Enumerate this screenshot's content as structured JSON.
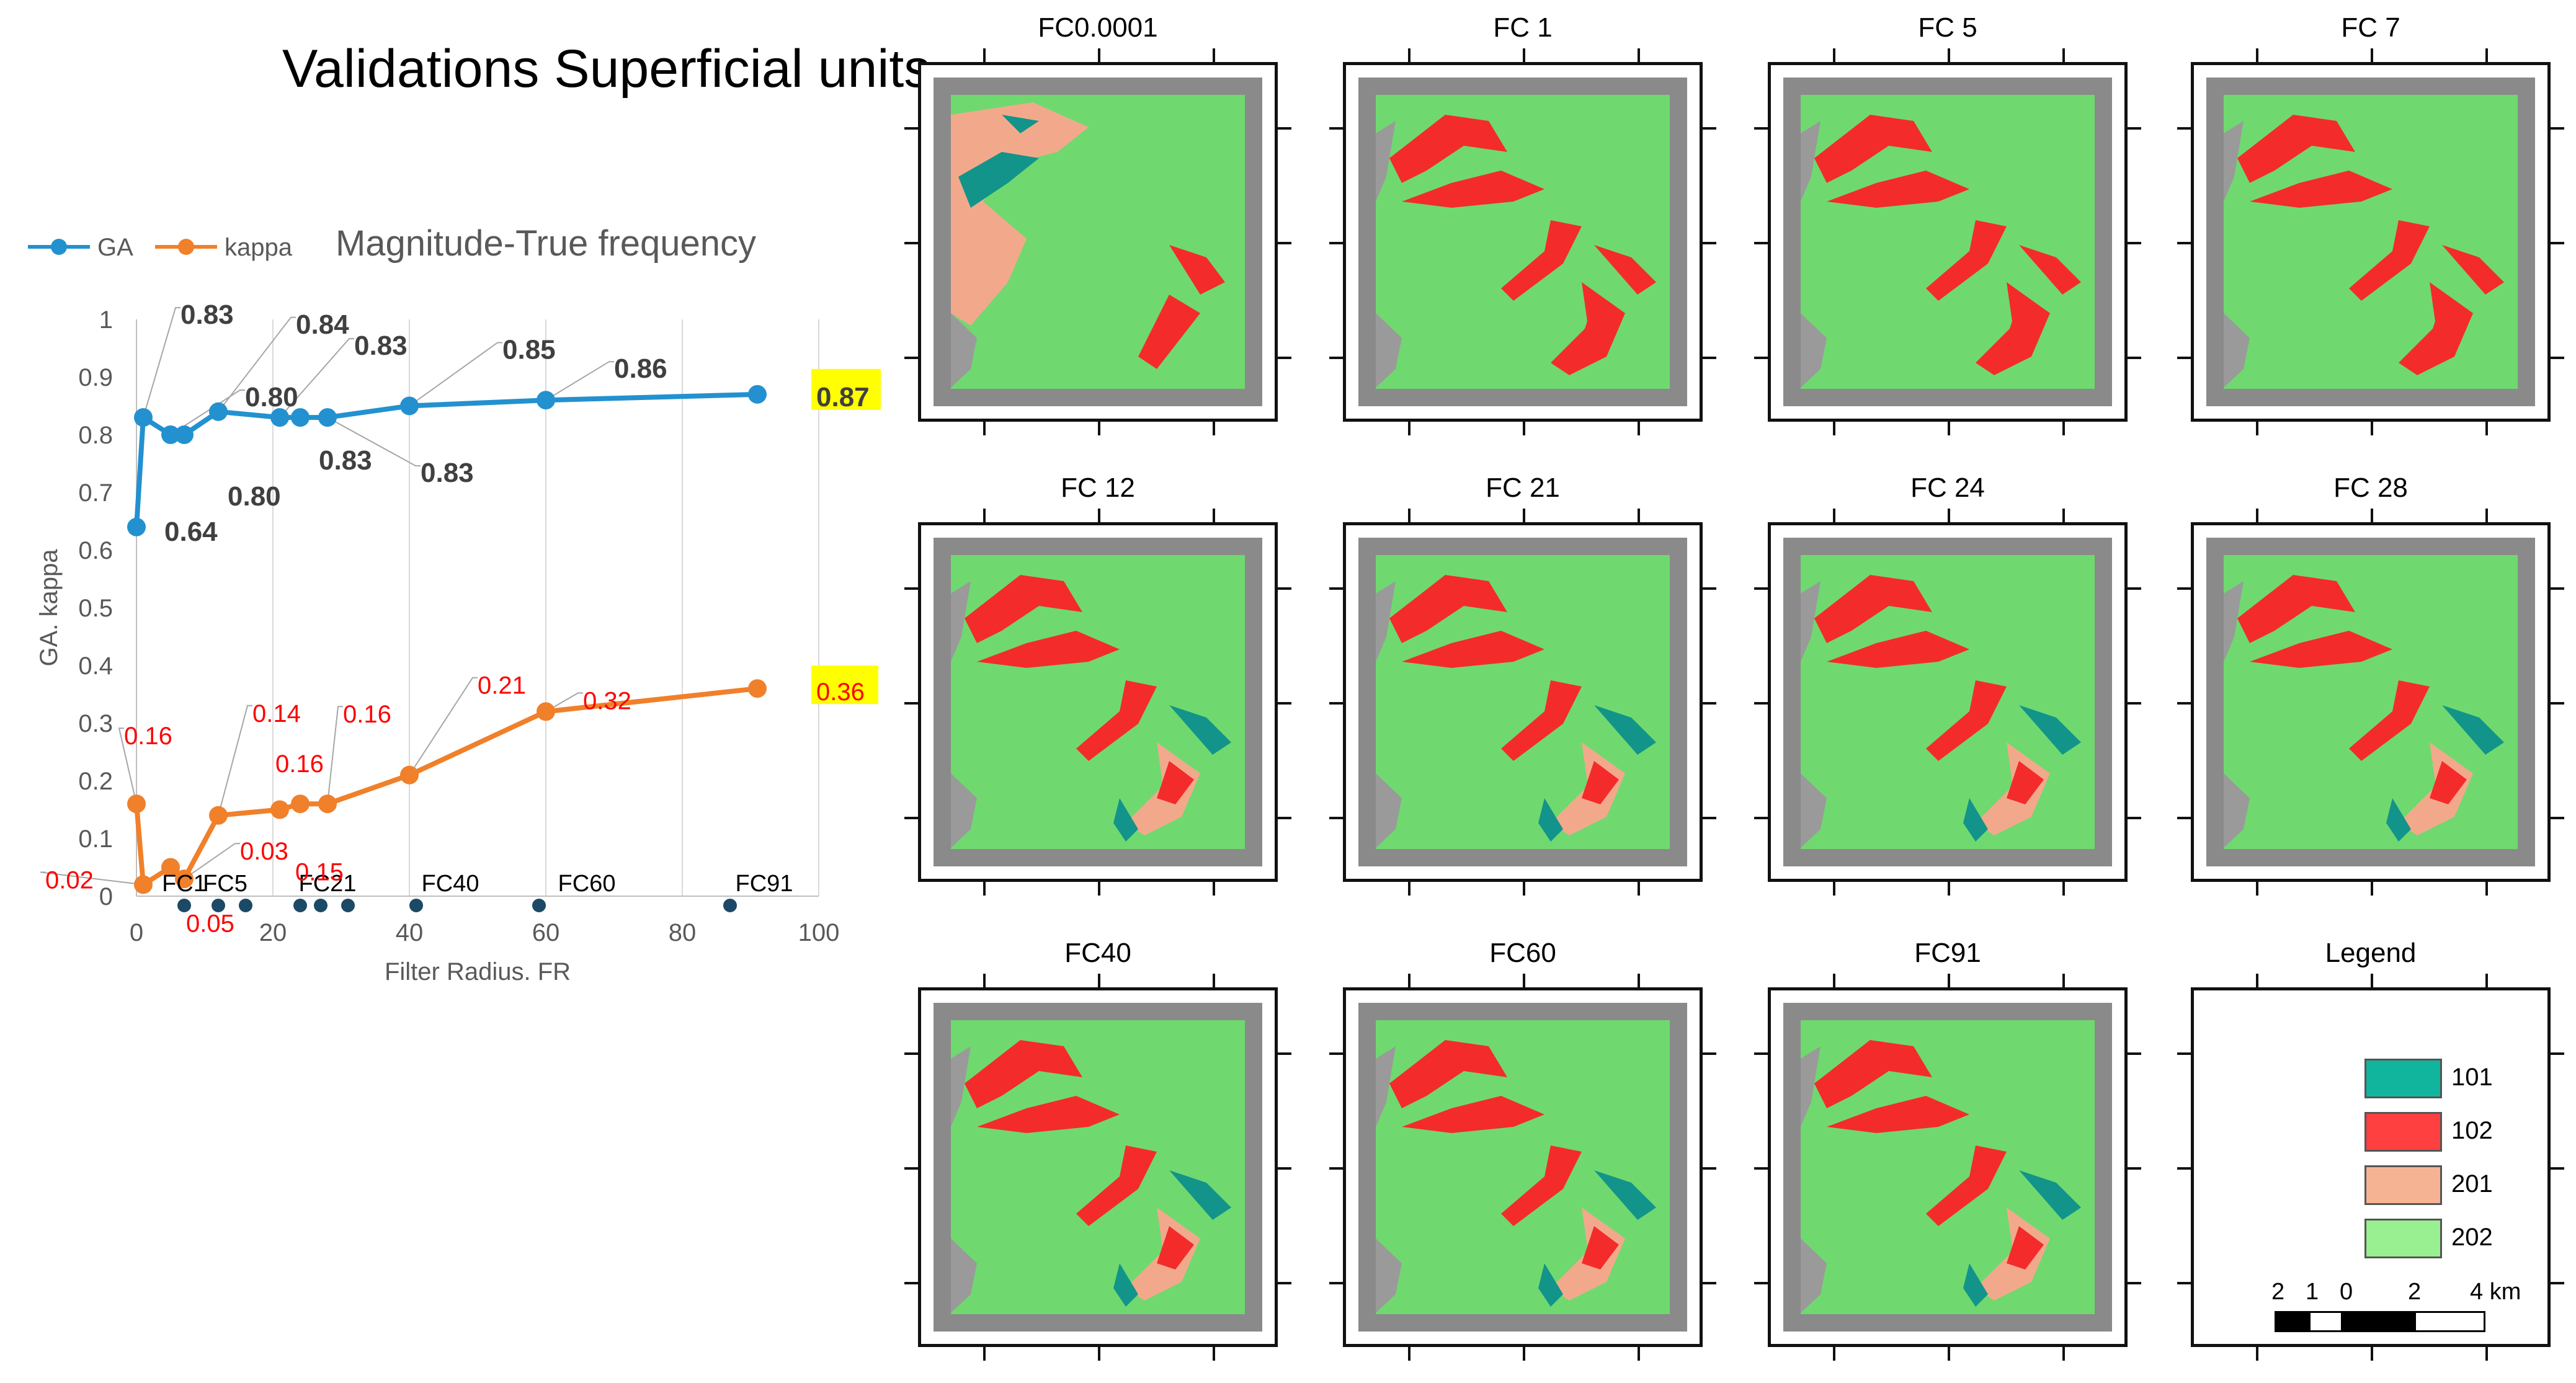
{
  "title": "Validations Superficial units",
  "chart_data": {
    "type": "line",
    "title": "Magnitude-True frequency",
    "xlabel": "Filter Radius. FR",
    "ylabel": "GA. kappa",
    "xlim": [
      0,
      100
    ],
    "ylim": [
      0,
      1
    ],
    "xticks": [
      "0",
      "20",
      "40",
      "60",
      "80",
      "100"
    ],
    "yticks": [
      "0",
      "0.1",
      "0.2",
      "0.3",
      "0.4",
      "0.5",
      "0.6",
      "0.7",
      "0.8",
      "0.9",
      "1"
    ],
    "legend": [
      "GA",
      "kappa"
    ],
    "legend_position": "top-left",
    "series": [
      {
        "name": "GA",
        "color": "#2391cf",
        "x": [
          0,
          1,
          5,
          7,
          12,
          21,
          24,
          28,
          40,
          60,
          91
        ],
        "y": [
          0.64,
          0.83,
          0.8,
          0.8,
          0.84,
          0.83,
          0.83,
          0.83,
          0.85,
          0.86,
          0.87
        ],
        "labels": [
          "0.64",
          "0.83",
          "0.80",
          "0.80",
          "0.84",
          "0.83",
          "0.83",
          "0.83",
          "0.85",
          "0.86",
          "0.87"
        ]
      },
      {
        "name": "kappa",
        "color": "#f0802a",
        "x": [
          0,
          1,
          5,
          7,
          12,
          21,
          24,
          28,
          40,
          60,
          91
        ],
        "y": [
          0.16,
          0.02,
          0.05,
          0.03,
          0.14,
          0.15,
          0.16,
          0.16,
          0.21,
          0.32,
          0.36
        ],
        "labels": [
          "0.16",
          "0.02",
          "0.05",
          "0.03",
          "0.14",
          "0.15",
          "0.16",
          "0.16",
          "0.21",
          "0.32",
          "0.36"
        ]
      }
    ],
    "filter_markers": {
      "x": [
        7,
        12,
        16,
        24,
        27,
        31,
        41,
        59,
        87
      ],
      "labels": [
        {
          "text": "FC1",
          "x": 7
        },
        {
          "text": "FC5",
          "x": 13
        },
        {
          "text": "FC21",
          "x": 28
        },
        {
          "text": "FC40",
          "x": 46
        },
        {
          "text": "FC60",
          "x": 66
        },
        {
          "text": "FC91",
          "x": 92
        }
      ]
    }
  },
  "panels": [
    {
      "title": "FC0.0001"
    },
    {
      "title": "FC 1"
    },
    {
      "title": "FC 5"
    },
    {
      "title": "FC 7"
    },
    {
      "title": "FC 12"
    },
    {
      "title": "FC 21"
    },
    {
      "title": "FC 24"
    },
    {
      "title": "FC 28"
    },
    {
      "title": "FC40"
    },
    {
      "title": "FC60"
    },
    {
      "title": "FC91"
    }
  ],
  "legend_panel": {
    "title": "Legend",
    "items": [
      {
        "label": "101",
        "color": "#11b59e"
      },
      {
        "label": "102",
        "color": "#ff4040"
      },
      {
        "label": "201",
        "color": "#f6b394"
      },
      {
        "label": "202",
        "color": "#98f090"
      }
    ],
    "scale_labels": [
      "2",
      "1",
      "0",
      "2",
      "4 km"
    ]
  },
  "map_colors": {
    "unit_101": "#12948a",
    "unit_102": "#f42b2b",
    "unit_201": "#f2a98b",
    "unit_202": "#6fd96f",
    "border": "#8a8a8a"
  }
}
